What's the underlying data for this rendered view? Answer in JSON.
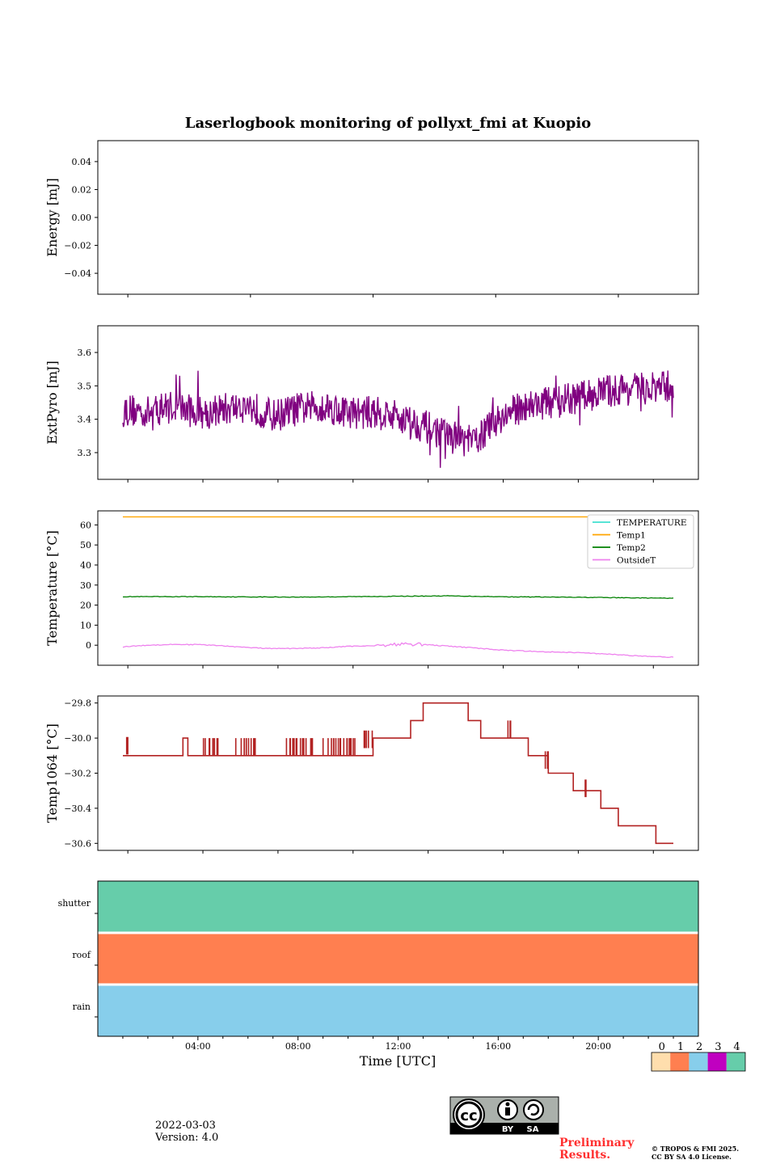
{
  "title": "Laserlogbook monitoring of pollyxt_fmi at Kuopio",
  "colors": {
    "extpyro": "#800080",
    "temperature": "#40e0d0",
    "temp1": "#ffa500",
    "temp2": "#008000",
    "outside": "#ee82ee",
    "temp1064": "#b22222",
    "shutter": "#66cdaa",
    "roof": "#ff7f50",
    "rain": "#87ceeb",
    "prelim": "#ff3030"
  },
  "chart_data": [
    {
      "type": "line",
      "name": "energy",
      "ylabel": "Energy [mJ]",
      "ylim": [
        -0.055,
        0.055
      ],
      "yticks": [
        0.04,
        0.02,
        0.0,
        -0.02,
        -0.04
      ],
      "yticklabels": [
        "0.04",
        "0.02",
        "0.00",
        "−0.02",
        "−0.04"
      ],
      "series": []
    },
    {
      "type": "line",
      "name": "extpyro",
      "ylabel": "ExtPyro [mJ]",
      "ylim": [
        3.22,
        3.68
      ],
      "yticks": [
        3.6,
        3.5,
        3.4,
        3.3
      ],
      "yticklabels": [
        "3.6",
        "3.5",
        "3.4",
        "3.3"
      ],
      "series": [
        {
          "name": "ExtPyro",
          "x": [
            1.0,
            2.0,
            3.0,
            4.0,
            5.0,
            6.0,
            7.0,
            8.0,
            9.0,
            10.0,
            11.0,
            12.0,
            13.0,
            14.0,
            15.0,
            16.0,
            17.0,
            18.0,
            19.0,
            20.0,
            21.0,
            22.0,
            23.0,
            23.0
          ],
          "y": [
            3.43,
            3.42,
            3.44,
            3.42,
            3.43,
            3.44,
            3.41,
            3.43,
            3.44,
            3.42,
            3.42,
            3.41,
            3.38,
            3.35,
            3.33,
            3.4,
            3.44,
            3.45,
            3.46,
            3.48,
            3.49,
            3.49,
            3.5,
            3.47
          ],
          "noise": 0.05
        }
      ]
    },
    {
      "type": "line",
      "name": "temperature",
      "ylabel": "Temperature [°C]",
      "ylim": [
        -10,
        67
      ],
      "yticks": [
        60,
        50,
        40,
        30,
        20,
        10,
        0
      ],
      "yticklabels": [
        "60",
        "50",
        "40",
        "30",
        "20",
        "10",
        "0"
      ],
      "legend": [
        "TEMPERATURE",
        "Temp1",
        "Temp2",
        "OutsideT"
      ],
      "legend_loc": "top-right",
      "series": [
        {
          "name": "Temp1",
          "x": [
            1,
            23
          ],
          "y": [
            64,
            64
          ]
        },
        {
          "name": "Temp2",
          "x": [
            1,
            4,
            8,
            12,
            14,
            16,
            20,
            23
          ],
          "y": [
            24.2,
            24.2,
            24.0,
            24.4,
            24.6,
            24.2,
            23.8,
            23.4
          ]
        },
        {
          "name": "OutsideT",
          "x": [
            1,
            2,
            3,
            4,
            5,
            6,
            7,
            8,
            9,
            10,
            11,
            12,
            13,
            14,
            15,
            16,
            17,
            18,
            19,
            20,
            21,
            22,
            23
          ],
          "y": [
            -0.8,
            0.0,
            0.4,
            0.3,
            -0.3,
            -1.2,
            -1.7,
            -1.6,
            -1.3,
            -0.6,
            -0.2,
            0.5,
            0.4,
            -0.5,
            -1.3,
            -2.3,
            -2.9,
            -3.3,
            -3.6,
            -4.2,
            -4.9,
            -5.6,
            -6.0
          ]
        }
      ]
    },
    {
      "type": "line",
      "name": "temp1064",
      "ylabel": "Temp1064 [°C]",
      "ylim": [
        -30.64,
        -29.76
      ],
      "yticks": [
        -29.8,
        -30.0,
        -30.2,
        -30.4,
        -30.6
      ],
      "yticklabels": [
        "−29.8",
        "−30.0",
        "−30.2",
        "−30.4",
        "−30.6"
      ],
      "series": [
        {
          "name": "Temp1064",
          "step_x": [
            1.0,
            3.4,
            3.6,
            4.0,
            4.8,
            5.2,
            6.0,
            6.5,
            6.7,
            7.4,
            7.6,
            8.4,
            9.0,
            9.3,
            10.3,
            11.0,
            12.0,
            12.5,
            13.0,
            14.8,
            15.3,
            16.5,
            17.2,
            18.0,
            18.5,
            19.0,
            20.1,
            20.8,
            22.3,
            23.0
          ],
          "step_y": [
            -30.1,
            -30.0,
            -30.1,
            -30.1,
            -30.1,
            -30.1,
            -30.1,
            -30.1,
            -30.1,
            -30.1,
            -30.1,
            -30.1,
            -30.1,
            -30.1,
            -30.1,
            -30.0,
            -30.0,
            -29.9,
            -29.8,
            -29.9,
            -30.0,
            -30.0,
            -30.1,
            -30.2,
            -30.2,
            -30.3,
            -30.4,
            -30.5,
            -30.6,
            -30.6
          ],
          "flicker_ranges": [
            [
              1.15,
              1.2
            ],
            [
              4.0,
              4.8
            ],
            [
              5.5,
              6.3
            ],
            [
              7.4,
              8.6
            ],
            [
              9.0,
              10.3
            ],
            [
              10.6,
              11.0
            ],
            [
              16.3,
              16.5
            ],
            [
              17.8,
              18.0
            ],
            [
              19.4,
              19.6
            ]
          ]
        }
      ]
    },
    {
      "type": "heatmap",
      "name": "status",
      "rows": [
        "shutter",
        "roof",
        "rain"
      ],
      "row_values": [
        4,
        1,
        2
      ],
      "xlabel": "Time [UTC]",
      "xlim": [
        0,
        24
      ],
      "xticks": [
        4,
        8,
        12,
        16,
        20
      ],
      "xticklabels": [
        "04:00",
        "08:00",
        "12:00",
        "16:00",
        "20:00"
      ]
    }
  ],
  "colorbar": {
    "labels": [
      "0",
      "1",
      "2",
      "3",
      "4"
    ],
    "colors": [
      "#ffdead",
      "#ff7f50",
      "#87ceeb",
      "#c000c0",
      "#66cdaa"
    ]
  },
  "footer": {
    "date": "2022-03-03",
    "version": "Version: 4.0",
    "preliminary_line1": "Preliminary",
    "preliminary_line2": "Results.",
    "copyright_line1": "© TROPOS & FMI 2025.",
    "copyright_line2": "CC BY SA 4.0 License.",
    "cc_by": "BY",
    "cc_sa": "SA",
    "cc_logo_text": "cc"
  }
}
